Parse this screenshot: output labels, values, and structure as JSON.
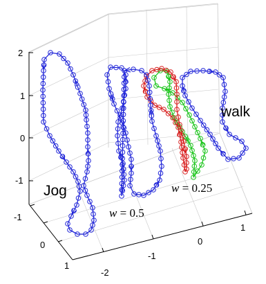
{
  "chart_data": {
    "type": "line",
    "subtype": "3d-trajectory",
    "grid": true,
    "colors": {
      "jog": "#1f24d8",
      "w05": "#1f24d8",
      "w025": "#d81f1f",
      "walk": "#1f24d8",
      "green": "#19c419"
    },
    "z_ticks": [
      "2",
      "1",
      "0",
      "-1"
    ],
    "x_ticks": [
      "-2",
      "-1",
      "0",
      "1"
    ],
    "y_ticks": [
      "-1",
      "0",
      "1"
    ],
    "annotations": [
      {
        "key": "jog",
        "text": "Jog"
      },
      {
        "key": "walk",
        "text": "walk"
      },
      {
        "key": "w05",
        "var": "w",
        "eq": " = ",
        "value": "0.5"
      },
      {
        "key": "w025",
        "var": "w",
        "eq": " = ",
        "value": "0.25"
      }
    ],
    "series": [
      {
        "key": "jog",
        "color": "#1f24d8",
        "marker": "circle",
        "arrows": true
      },
      {
        "key": "w05",
        "color": "#1f24d8",
        "marker": "circle",
        "arrows": true
      },
      {
        "key": "w025",
        "color": "#d81f1f",
        "marker": "circle",
        "arrows": true
      },
      {
        "key": "green",
        "color": "#19c419",
        "marker": "circle",
        "arrows": true
      },
      {
        "key": "walk",
        "color": "#1f24d8",
        "marker": "circle",
        "arrows": true
      }
    ]
  }
}
